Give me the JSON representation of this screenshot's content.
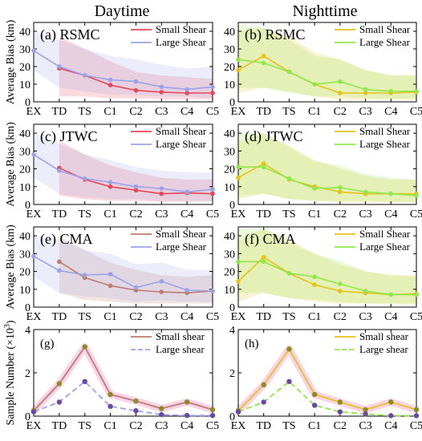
{
  "figure": {
    "column_titles": [
      "Daytime",
      "Nighttime"
    ],
    "ylabel_bias": "Average Bias (km)",
    "ylabel_sample": "Sample Number (×10",
    "ylabel_sample_exp": "3",
    "ylabel_sample_close": ")"
  },
  "colors": {
    "red": "#e64858",
    "blue": "#9aa3ea",
    "yellow": "#e6c21a",
    "green": "#8ee84a",
    "brown": "#c07a6e",
    "olive": "#8c8a20",
    "purple": "#6a48a8",
    "pink_glow": "#f7c9e2"
  },
  "chart_data": [
    {
      "type": "line",
      "panel_label": "(a) RSMC",
      "ylim": [
        0,
        45
      ],
      "yticks": [
        0,
        10,
        20,
        30,
        40
      ],
      "x": [
        "EX",
        "TD",
        "TS",
        "C1",
        "C2",
        "C3",
        "C4",
        "C5"
      ],
      "series": [
        {
          "name": "Small Shear",
          "color": "red",
          "start": 1,
          "values": [
            null,
            19,
            15,
            9.5,
            6.5,
            5.5,
            5,
            5
          ],
          "band_upper": [
            null,
            37,
            30,
            23,
            17,
            15,
            14,
            13
          ],
          "band_lower": [
            null,
            3,
            3,
            2,
            2,
            1.5,
            1.5,
            1.5
          ]
        },
        {
          "name": "Large Shear",
          "color": "blue",
          "start": 0,
          "values": [
            29,
            20,
            15,
            12.5,
            11.5,
            8.5,
            7,
            8.5
          ],
          "band_upper": [
            40,
            35,
            30,
            26,
            24,
            21,
            19,
            20
          ],
          "band_lower": [
            18,
            8,
            6,
            4,
            4,
            3,
            3,
            2
          ]
        }
      ]
    },
    {
      "type": "line",
      "panel_label": "(b) RSMC",
      "ylim": [
        0,
        45
      ],
      "yticks": [
        0,
        10,
        20,
        30,
        40
      ],
      "x": [
        "EX",
        "TD",
        "TS",
        "C1",
        "C2",
        "C3",
        "C4",
        "C5"
      ],
      "series": [
        {
          "name": "Small Shear",
          "color": "yellow",
          "start": 0,
          "values": [
            18,
            26,
            17,
            10,
            5,
            5,
            5,
            5.5
          ],
          "band_upper": [
            40,
            42,
            37,
            28,
            24,
            18,
            15,
            15
          ],
          "band_lower": [
            5,
            8,
            6,
            3,
            1,
            1,
            1,
            1
          ]
        },
        {
          "name": "Large Shear",
          "color": "green",
          "start": 0,
          "values": [
            24,
            22,
            17,
            10,
            11.5,
            7,
            6,
            6
          ],
          "band_upper": [
            44,
            42,
            35,
            26,
            24,
            18,
            15,
            15
          ],
          "band_lower": [
            8,
            8,
            5,
            3,
            3,
            2,
            2,
            2
          ]
        }
      ]
    },
    {
      "type": "line",
      "panel_label": "(c) JTWC",
      "ylim": [
        0,
        45
      ],
      "yticks": [
        0,
        10,
        20,
        30,
        40
      ],
      "x": [
        "EX",
        "TD",
        "TS",
        "C1",
        "C2",
        "C3",
        "C4",
        "C5"
      ],
      "series": [
        {
          "name": "Small Shear",
          "color": "red",
          "start": 1,
          "values": [
            null,
            20.5,
            14,
            10,
            8,
            6,
            6.5,
            6
          ],
          "band_upper": [
            null,
            36,
            28,
            22,
            18,
            15,
            14,
            14
          ],
          "band_lower": [
            null,
            5,
            3,
            2,
            2,
            1.5,
            1.5,
            1.5
          ]
        },
        {
          "name": "Large Shear",
          "color": "blue",
          "start": 0,
          "values": [
            28,
            19,
            14.5,
            12.5,
            10,
            9,
            7,
            8.5
          ],
          "band_upper": [
            40,
            34,
            28,
            25,
            21,
            19,
            18,
            18
          ],
          "band_lower": [
            15,
            6,
            4,
            3,
            3,
            2,
            2,
            2
          ]
        }
      ]
    },
    {
      "type": "line",
      "panel_label": "(d) JTWC",
      "ylim": [
        0,
        45
      ],
      "yticks": [
        0,
        10,
        20,
        30,
        40
      ],
      "x": [
        "EX",
        "TD",
        "TS",
        "C1",
        "C2",
        "C3",
        "C4",
        "C5"
      ],
      "series": [
        {
          "name": "Small Shear",
          "color": "yellow",
          "start": 0,
          "values": [
            15,
            23,
            14,
            10,
            7,
            6,
            6,
            6
          ],
          "band_upper": [
            35,
            40,
            33,
            25,
            20,
            16,
            14,
            14
          ],
          "band_lower": [
            3,
            6,
            3,
            2,
            1,
            1,
            1,
            1
          ]
        },
        {
          "name": "Large Shear",
          "color": "green",
          "start": 0,
          "values": [
            21,
            21,
            14.5,
            9,
            9.5,
            7,
            6,
            5
          ],
          "band_upper": [
            40,
            40,
            32,
            24,
            22,
            17,
            15,
            14
          ],
          "band_lower": [
            5,
            6,
            3,
            2,
            2,
            2,
            1.5,
            1.5
          ]
        }
      ]
    },
    {
      "type": "line",
      "panel_label": "(e) CMA",
      "ylim": [
        0,
        45
      ],
      "yticks": [
        0,
        10,
        20,
        30,
        40
      ],
      "x": [
        "EX",
        "TD",
        "TS",
        "C1",
        "C2",
        "C3",
        "C4",
        "C5"
      ],
      "series": [
        {
          "name": "Small Shear",
          "color": "brown",
          "start": 1,
          "values": [
            null,
            25.5,
            16.5,
            12,
            9.5,
            8.5,
            8,
            9
          ],
          "band_upper": [
            null,
            40,
            32,
            25,
            21,
            18,
            17,
            18
          ],
          "band_lower": [
            null,
            8,
            4,
            3,
            2,
            2,
            2,
            2
          ]
        },
        {
          "name": "Large Shear",
          "color": "blue",
          "start": 0,
          "values": [
            28.5,
            20.5,
            18,
            18.5,
            11,
            14.5,
            9.5,
            9
          ],
          "band_upper": [
            40,
            38,
            32,
            30,
            24,
            25,
            21,
            21
          ],
          "band_lower": [
            17,
            8,
            6,
            5,
            3,
            4,
            3,
            3
          ]
        }
      ]
    },
    {
      "type": "line",
      "panel_label": "(f) CMA",
      "ylim": [
        0,
        45
      ],
      "yticks": [
        0,
        10,
        20,
        30,
        40
      ],
      "x": [
        "EX",
        "TD",
        "TS",
        "C1",
        "C2",
        "C3",
        "C4",
        "C5"
      ],
      "series": [
        {
          "name": "Small Shear",
          "color": "yellow",
          "start": 0,
          "values": [
            14.5,
            28,
            19,
            12.5,
            9,
            8,
            7,
            7.5
          ],
          "band_upper": [
            38,
            44,
            38,
            30,
            24,
            20,
            18,
            18
          ],
          "band_lower": [
            3,
            8,
            5,
            3,
            2,
            2,
            1.5,
            1.5
          ]
        },
        {
          "name": "Large Shear",
          "color": "green",
          "start": 0,
          "values": [
            25.5,
            25.5,
            19,
            17,
            13,
            9,
            7,
            7
          ],
          "band_upper": [
            44,
            44,
            36,
            30,
            26,
            20,
            18,
            17
          ],
          "band_lower": [
            8,
            8,
            5,
            4,
            3,
            2,
            2,
            2
          ]
        }
      ]
    },
    {
      "type": "line",
      "panel_label": "(g)",
      "ylim": [
        0,
        4
      ],
      "yticks": [
        0,
        2,
        4
      ],
      "x": [
        "EX",
        "TD",
        "TS",
        "C1",
        "C2",
        "C3",
        "C4",
        "C5"
      ],
      "series": [
        {
          "name": "Small shear",
          "color": "brown",
          "dashed": false,
          "values": [
            0.25,
            1.5,
            3.2,
            1.0,
            0.7,
            0.35,
            0.65,
            0.3
          ]
        },
        {
          "name": "Large shear",
          "color": "blue",
          "dashed": true,
          "values": [
            0.2,
            0.65,
            1.6,
            0.45,
            0.25,
            0.07,
            0.03,
            0.03
          ]
        }
      ]
    },
    {
      "type": "line",
      "panel_label": "(h)",
      "ylim": [
        0,
        4
      ],
      "yticks": [
        0,
        2,
        4
      ],
      "x": [
        "EX",
        "TD",
        "TS",
        "C1",
        "C2",
        "C3",
        "C4",
        "C5"
      ],
      "series": [
        {
          "name": "Small shear",
          "color": "yellow",
          "dashed": false,
          "values": [
            0.25,
            1.45,
            3.1,
            1.0,
            0.65,
            0.3,
            0.65,
            0.3
          ]
        },
        {
          "name": "Large shear",
          "color": "green",
          "dashed": true,
          "values": [
            0.2,
            0.65,
            1.6,
            0.5,
            0.2,
            0.1,
            0.02,
            0.02
          ]
        }
      ]
    }
  ]
}
